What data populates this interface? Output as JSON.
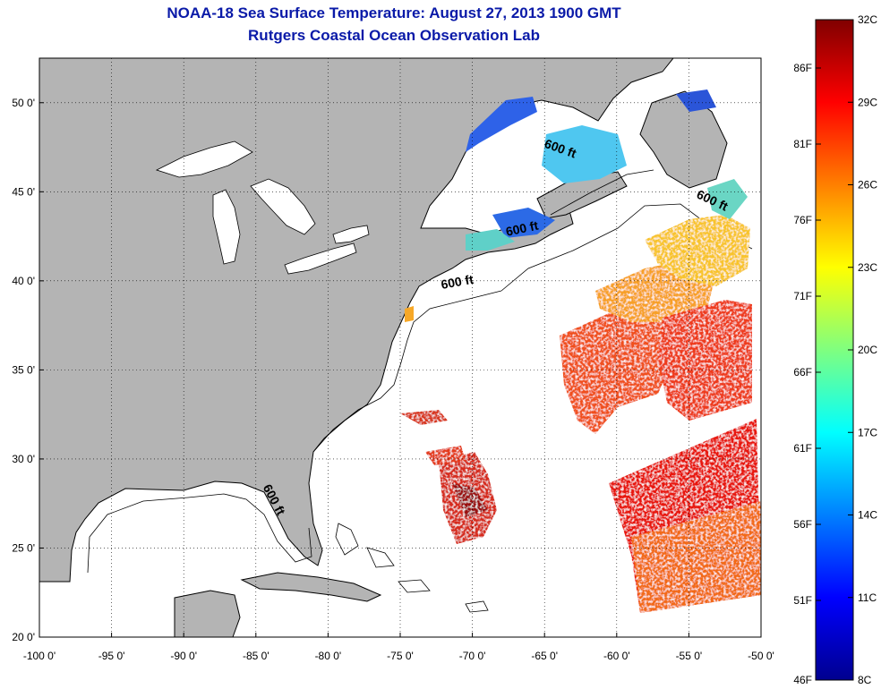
{
  "title": "NOAA-18 Sea Surface Temperature:  August 27, 2013 1900 GMT",
  "subtitle": "Rutgers Coastal Ocean Observation Lab",
  "map": {
    "lon_range": [
      -100,
      -50
    ],
    "lat_range": [
      20,
      52.5
    ],
    "lon_ticks": [
      {
        "value": -100,
        "label": "-100 0'"
      },
      {
        "value": -95,
        "label": "-95 0'"
      },
      {
        "value": -90,
        "label": "-90 0'"
      },
      {
        "value": -85,
        "label": "-85 0'"
      },
      {
        "value": -80,
        "label": "-80 0'"
      },
      {
        "value": -75,
        "label": "-75 0'"
      },
      {
        "value": -70,
        "label": "-70 0'"
      },
      {
        "value": -65,
        "label": "-65 0'"
      },
      {
        "value": -60,
        "label": "-60 0'"
      },
      {
        "value": -55,
        "label": "-55 0'"
      },
      {
        "value": -50,
        "label": "-50 0'"
      }
    ],
    "lat_ticks": [
      {
        "value": 20,
        "label": "20 0'"
      },
      {
        "value": 25,
        "label": "25 0'"
      },
      {
        "value": 30,
        "label": "30 0'"
      },
      {
        "value": 35,
        "label": "35 0'"
      },
      {
        "value": 40,
        "label": "40 0'"
      },
      {
        "value": 45,
        "label": "45 0'"
      },
      {
        "value": 50,
        "label": "50 0'"
      }
    ],
    "contour_labels": [
      {
        "text": "600 ft",
        "lon": -64,
        "lat": 47.2,
        "angle": 20
      },
      {
        "text": "600 ft",
        "lon": -53.5,
        "lat": 44.3,
        "angle": 25
      },
      {
        "text": "600 ft",
        "lon": -66.5,
        "lat": 42.7,
        "angle": -12
      },
      {
        "text": "600 ft",
        "lon": -71,
        "lat": 39.7,
        "angle": -10
      },
      {
        "text": "600 ft",
        "lon": -84,
        "lat": 27.6,
        "angle": 62
      }
    ],
    "land_color": "#b4b4b4",
    "ocean_color": "#ffffff",
    "gridlines": "dotted"
  },
  "colorbar": {
    "celsius_range": [
      8,
      32
    ],
    "celsius_labels": [
      "32C",
      "29C",
      "26C",
      "23C",
      "20C",
      "17C",
      "14C",
      "11C",
      "8C"
    ],
    "fahrenheit_labels": [
      "86F",
      "81F",
      "76F",
      "71F",
      "66F",
      "61F",
      "56F",
      "51F",
      "46F"
    ],
    "colormap": "jet"
  }
}
